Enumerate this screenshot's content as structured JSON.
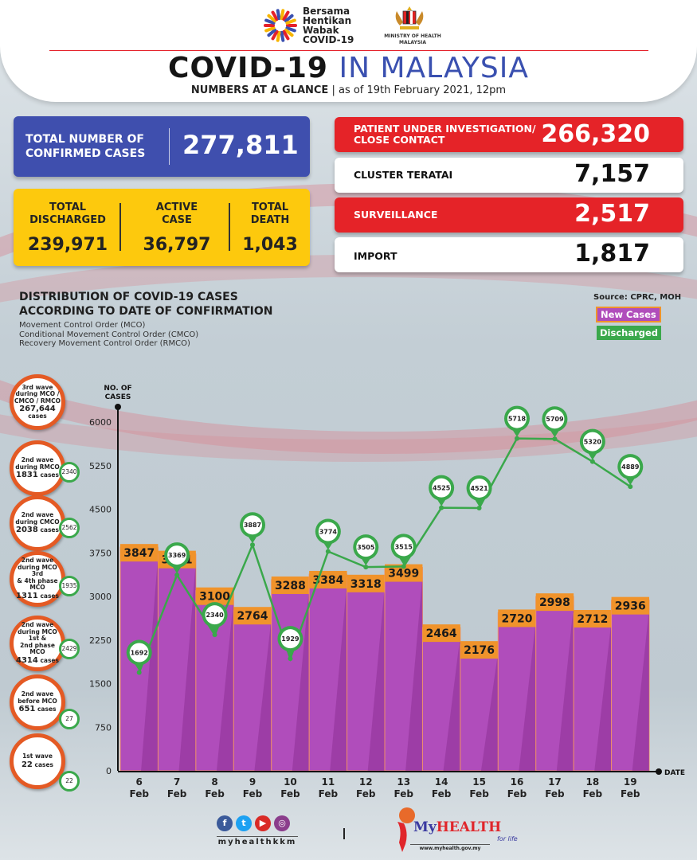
{
  "header": {
    "campaign_logo_lines": [
      "Bersama",
      "Hentikan",
      "Wabak",
      "COVID-19"
    ],
    "ministry_line1": "MINISTRY OF HEALTH",
    "ministry_line2": "MALAYSIA",
    "title_bold": "COVID-19",
    "title_accent": "IN MALAYSIA",
    "subtitle_bold": "NUMBERS AT A GLANCE",
    "subtitle_date": "as of 19th February 2021, 12pm"
  },
  "summary": {
    "confirmed": {
      "label_line1": "TOTAL NUMBER OF",
      "label_line2": "CONFIRMED CASES",
      "value": "277,811"
    },
    "discharged": {
      "label_line1": "TOTAL",
      "label_line2": "DISCHARGED",
      "value": "239,971"
    },
    "active": {
      "label_line1": "ACTIVE",
      "label_line2": "CASE",
      "value": "36,797"
    },
    "death": {
      "label_line1": "TOTAL",
      "label_line2": "DEATH",
      "value": "1,043"
    }
  },
  "categories": [
    {
      "label_line1": "PATIENT UNDER INVESTIGATION/",
      "label_line2": "CLOSE CONTACT",
      "value": "266,320",
      "style": "red"
    },
    {
      "label_line1": "CLUSTER TERATAI",
      "label_line2": "",
      "value": "7,157",
      "style": "white"
    },
    {
      "label_line1": "SURVEILLANCE",
      "label_line2": "",
      "value": "2,517",
      "style": "red"
    },
    {
      "label_line1": "IMPORT",
      "label_line2": "",
      "value": "1,817",
      "style": "white"
    }
  ],
  "distribution": {
    "title_line1": "DISTRIBUTION OF COVID-19 CASES",
    "title_line2": "ACCORDING TO DATE OF CONFIRMATION",
    "notes": [
      "Movement Control Order (MCO)",
      "Conditional Movement Control Order (CMCO)",
      "Recovery Movement Control Order (RMCO)"
    ],
    "source": "Source: CPRC, MOH",
    "legend_new": "New Cases",
    "legend_discharged": "Discharged"
  },
  "waves": [
    {
      "l1": "3rd wave",
      "l2": "during MCO /",
      "l3": "CMCO / RMCO",
      "cases": "267,644",
      "unit": "cases",
      "discharged": ""
    },
    {
      "l1": "2nd wave",
      "l2": "during RMCO",
      "l3": "",
      "cases": "1831",
      "unit": "cases",
      "discharged": "2340"
    },
    {
      "l1": "2nd wave",
      "l2": "during CMCO",
      "l3": "",
      "cases": "2038",
      "unit": "cases",
      "discharged": "2562"
    },
    {
      "l1": "2nd wave",
      "l2": "during MCO 3rd",
      "l3": "& 4th phase MCO",
      "cases": "1311",
      "unit": "cases",
      "discharged": "1935"
    },
    {
      "l1": "2nd wave",
      "l2": "during MCO 1st &",
      "l3": "2nd phase MCO",
      "cases": "4314",
      "unit": "cases",
      "discharged": "2429"
    },
    {
      "l1": "2nd wave",
      "l2": "before MCO",
      "l3": "",
      "cases": "651",
      "unit": "cases",
      "discharged": "27"
    },
    {
      "l1": "1st wave",
      "l2": "",
      "l3": "",
      "cases": "22",
      "unit": "cases",
      "discharged": "22"
    }
  ],
  "chart_data": {
    "type": "bar",
    "title": "DISTRIBUTION OF COVID-19 CASES ACCORDING TO DATE OF CONFIRMATION",
    "ylabel": "NO. OF CASES",
    "xlabel": "DATE",
    "ylim": [
      0,
      6000
    ],
    "yticks": [
      0,
      750,
      1500,
      2250,
      3000,
      3750,
      4500,
      5250,
      6000
    ],
    "categories": [
      [
        "6",
        "Feb"
      ],
      [
        "7",
        "Feb"
      ],
      [
        "8",
        "Feb"
      ],
      [
        "9",
        "Feb"
      ],
      [
        "10",
        "Feb"
      ],
      [
        "11",
        "Feb"
      ],
      [
        "12",
        "Feb"
      ],
      [
        "13",
        "Feb"
      ],
      [
        "14",
        "Feb"
      ],
      [
        "15",
        "Feb"
      ],
      [
        "16",
        "Feb"
      ],
      [
        "17",
        "Feb"
      ],
      [
        "18",
        "Feb"
      ],
      [
        "19",
        "Feb"
      ]
    ],
    "series": [
      {
        "name": "New Cases",
        "type": "bar",
        "color": "#b04dbb",
        "label_color": "#f0932b",
        "values": [
          3847,
          3731,
          3100,
          2764,
          3288,
          3384,
          3318,
          3499,
          2464,
          2176,
          2720,
          2998,
          2712,
          2936
        ]
      },
      {
        "name": "Discharged",
        "type": "line",
        "color": "#3aa84b",
        "values": [
          1692,
          3369,
          2340,
          3887,
          1929,
          3774,
          3505,
          3515,
          4525,
          4521,
          5718,
          5709,
          5320,
          4889
        ]
      }
    ],
    "legend": "top-right"
  },
  "footer": {
    "social_icons": [
      "facebook-icon",
      "twitter-icon",
      "youtube-icon",
      "instagram-icon"
    ],
    "handle": "myhealthkkm",
    "brand_my": "My",
    "brand_health": "HEALTH",
    "tagline": "for life",
    "url": "www.myhealth.gov.my"
  }
}
